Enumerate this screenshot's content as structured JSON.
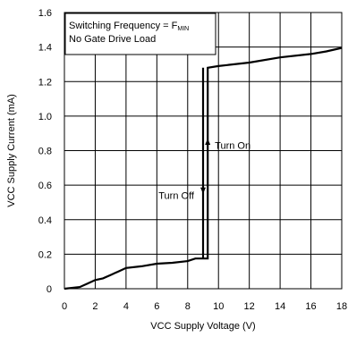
{
  "chart_data": {
    "type": "line",
    "title": "",
    "xlabel": "VCC Supply Voltage (V)",
    "ylabel": "VCC Supply Current (mA)",
    "xlim": [
      0,
      18
    ],
    "ylim": [
      0,
      1.6
    ],
    "xticks": [
      0,
      2,
      4,
      6,
      8,
      10,
      12,
      14,
      16,
      18
    ],
    "xtick_labels": [
      "0",
      "2",
      "4",
      "6",
      "8",
      "10",
      "12",
      "14",
      "16",
      "18"
    ],
    "yticks": [
      0,
      0.2,
      0.4,
      0.6,
      0.8,
      1.0,
      1.2,
      1.4,
      1.6
    ],
    "ytick_labels": [
      "0",
      "0.2",
      "0.4",
      "0.6",
      "0.8",
      "1.0",
      "1.2",
      "1.4",
      "1.6"
    ],
    "grid": true,
    "legend_position": "top-left",
    "legend_lines": [
      {
        "text": "Switching Frequency = F",
        "subscript": "MIN"
      },
      {
        "text": "No Gate Drive Load",
        "subscript": ""
      }
    ],
    "series": [
      {
        "color": "#000000",
        "x": [
          0,
          1,
          1.5,
          2,
          2.5,
          3,
          3.5,
          4,
          5,
          6,
          7,
          8,
          8.5,
          9.3,
          9.3,
          10,
          12,
          14,
          16,
          17,
          18
        ],
        "y": [
          0,
          0.01,
          0.03,
          0.05,
          0.06,
          0.08,
          0.1,
          0.12,
          0.13,
          0.145,
          0.15,
          0.16,
          0.175,
          0.175,
          1.28,
          1.29,
          1.31,
          1.34,
          1.36,
          1.375,
          1.395
        ]
      },
      {
        "color": "#000000",
        "x": [
          9.0,
          9.0
        ],
        "y": [
          0.175,
          1.28
        ]
      }
    ],
    "annotations": [
      {
        "text": "Turn On",
        "direction": "up",
        "x_at": 9.3,
        "y_from": 0.5,
        "y_to": 0.87,
        "label_y": 0.83
      },
      {
        "text": "Turn Off",
        "direction": "down",
        "x_at": 9.0,
        "y_from": 0.95,
        "y_to": 0.55,
        "label_y": 0.54
      }
    ]
  }
}
